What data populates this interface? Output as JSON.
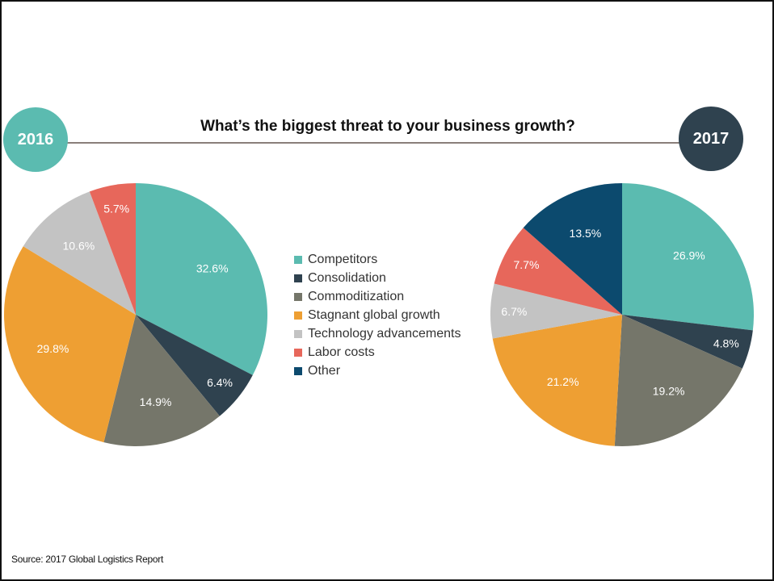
{
  "title": "What’s the biggest threat to your business growth?",
  "source": "Source: 2017 Global Logistics Report",
  "legend": [
    {
      "label": "Competitors",
      "color": "#5bbbb0"
    },
    {
      "label": "Consolidation",
      "color": "#2f424f"
    },
    {
      "label": "Commoditization",
      "color": "#75766a"
    },
    {
      "label": "Stagnant global growth",
      "color": "#ee9f33"
    },
    {
      "label": "Technology advancements",
      "color": "#c3c3c3"
    },
    {
      "label": "Labor costs",
      "color": "#e7675b"
    },
    {
      "label": "Other",
      "color": "#0c4a6e"
    }
  ],
  "chart_data": [
    {
      "type": "pie",
      "year": "2016",
      "title": "2016",
      "categories": [
        "Competitors",
        "Consolidation",
        "Commoditization",
        "Stagnant global growth",
        "Technology advancements",
        "Labor costs"
      ],
      "values": [
        32.6,
        6.4,
        14.9,
        29.8,
        10.6,
        5.7
      ],
      "labels": [
        "32.6%",
        "6.4%",
        "14.9%",
        "29.8%",
        "10.6%",
        "5.7%"
      ],
      "colors": [
        "#5bbbb0",
        "#2f424f",
        "#75766a",
        "#ee9f33",
        "#c3c3c3",
        "#e7675b"
      ]
    },
    {
      "type": "pie",
      "year": "2017",
      "title": "2017",
      "categories": [
        "Competitors",
        "Consolidation",
        "Commoditization",
        "Stagnant global growth",
        "Technology advancements",
        "Labor costs",
        "Other"
      ],
      "values": [
        26.9,
        4.8,
        19.2,
        21.2,
        6.7,
        7.7,
        13.5
      ],
      "labels": [
        "26.9%",
        "4.8%",
        "19.2%",
        "21.2%",
        "6.7%",
        "7.7%",
        "13.5%"
      ],
      "colors": [
        "#5bbbb0",
        "#2f424f",
        "#75766a",
        "#ee9f33",
        "#c3c3c3",
        "#e7675b",
        "#0c4a6e"
      ]
    }
  ]
}
